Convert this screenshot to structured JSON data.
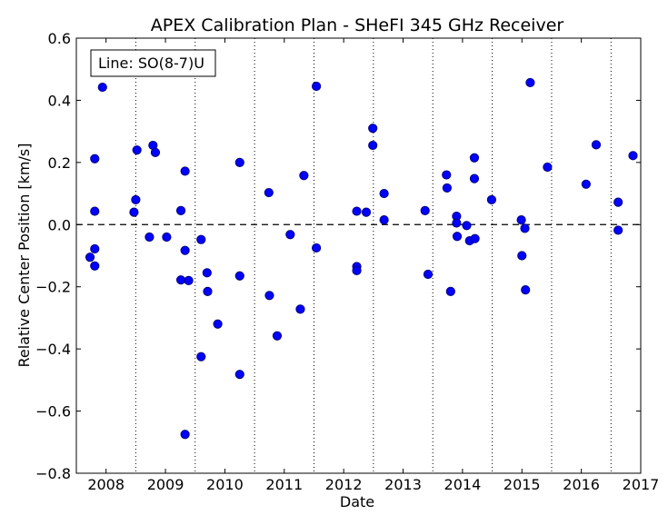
{
  "chart_data": {
    "type": "scatter",
    "title": "APEX Calibration Plan - SHeFI 345 GHz Receiver",
    "xlabel": "Date",
    "ylabel": "Relative Center Position [km/s]",
    "legend_text": "Line: SO(8-7)U",
    "legend_position": "top-left",
    "xlim": [
      2007.5,
      2017.0
    ],
    "ylim": [
      -0.8,
      0.6
    ],
    "x_ticks": [
      2008,
      2009,
      2010,
      2011,
      2012,
      2013,
      2014,
      2015,
      2016,
      2017
    ],
    "x_tick_labels": [
      "2008",
      "2009",
      "2010",
      "2011",
      "2012",
      "2013",
      "2014",
      "2015",
      "2016",
      "2017"
    ],
    "y_ticks": [
      -0.8,
      -0.6,
      -0.4,
      -0.2,
      0.0,
      0.2,
      0.4,
      0.6
    ],
    "y_tick_labels": [
      "−0.8",
      "−0.6",
      "−0.4",
      "−0.2",
      "0.0",
      "0.2",
      "0.4",
      "0.6"
    ],
    "vertical_dotted_lines": [
      2008.5,
      2009.5,
      2010.5,
      2011.5,
      2012.5,
      2013.5,
      2014.5,
      2015.5,
      2016.5
    ],
    "zero_line": 0.0,
    "marker_color": "#0000ff",
    "marker_edge": "#000080",
    "points": [
      [
        2007.73,
        -0.105
      ],
      [
        2007.81,
        0.212
      ],
      [
        2007.81,
        0.043
      ],
      [
        2007.81,
        -0.078
      ],
      [
        2007.81,
        -0.133
      ],
      [
        2007.94,
        0.442
      ],
      [
        2008.47,
        0.04
      ],
      [
        2008.5,
        0.08
      ],
      [
        2008.52,
        0.24
      ],
      [
        2008.73,
        -0.04
      ],
      [
        2008.79,
        0.255
      ],
      [
        2008.83,
        0.232
      ],
      [
        2009.02,
        -0.04
      ],
      [
        2009.26,
        0.045
      ],
      [
        2009.26,
        -0.178
      ],
      [
        2009.33,
        0.172
      ],
      [
        2009.33,
        -0.083
      ],
      [
        2009.33,
        -0.675
      ],
      [
        2009.39,
        -0.18
      ],
      [
        2009.6,
        -0.048
      ],
      [
        2009.6,
        -0.425
      ],
      [
        2009.7,
        -0.155
      ],
      [
        2009.71,
        -0.215
      ],
      [
        2009.88,
        -0.32
      ],
      [
        2010.25,
        0.2
      ],
      [
        2010.25,
        -0.165
      ],
      [
        2010.25,
        -0.482
      ],
      [
        2010.74,
        0.103
      ],
      [
        2010.75,
        -0.228
      ],
      [
        2010.88,
        -0.358
      ],
      [
        2011.1,
        -0.032
      ],
      [
        2011.27,
        -0.272
      ],
      [
        2011.33,
        0.158
      ],
      [
        2011.54,
        0.445
      ],
      [
        2011.54,
        -0.075
      ],
      [
        2012.22,
        0.043
      ],
      [
        2012.22,
        -0.135
      ],
      [
        2012.22,
        -0.148
      ],
      [
        2012.38,
        0.04
      ],
      [
        2012.49,
        0.31
      ],
      [
        2012.49,
        0.255
      ],
      [
        2012.68,
        0.1
      ],
      [
        2012.68,
        0.015
      ],
      [
        2013.37,
        0.045
      ],
      [
        2013.42,
        -0.16
      ],
      [
        2013.73,
        0.16
      ],
      [
        2013.74,
        0.118
      ],
      [
        2013.8,
        -0.215
      ],
      [
        2013.9,
        0.027
      ],
      [
        2013.9,
        0.005
      ],
      [
        2013.91,
        -0.038
      ],
      [
        2014.07,
        -0.003
      ],
      [
        2014.12,
        -0.052
      ],
      [
        2014.2,
        0.215
      ],
      [
        2014.2,
        0.148
      ],
      [
        2014.21,
        -0.045
      ],
      [
        2014.49,
        0.08
      ],
      [
        2014.99,
        0.015
      ],
      [
        2015.0,
        -0.1
      ],
      [
        2015.05,
        -0.012
      ],
      [
        2015.06,
        -0.21
      ],
      [
        2015.14,
        0.457
      ],
      [
        2015.43,
        0.185
      ],
      [
        2016.08,
        0.13
      ],
      [
        2016.25,
        0.257
      ],
      [
        2016.62,
        0.072
      ],
      [
        2016.62,
        -0.018
      ],
      [
        2016.87,
        0.222
      ]
    ]
  }
}
